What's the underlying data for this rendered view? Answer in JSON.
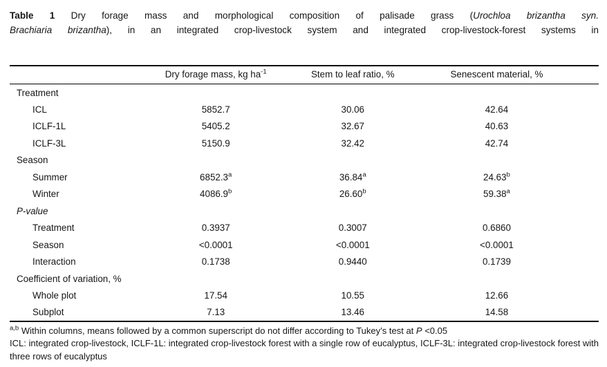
{
  "caption": {
    "line1": {
      "bold": "Table 1",
      "text": " Dry forage mass and morphological composition of palisade grass (",
      "italic": "Urochloa brizantha syn."
    },
    "line2": {
      "italic": "Brachiaria brizantha",
      "text": "), in an integrated crop-livestock system and integrated crop-livestock-forest systems in"
    }
  },
  "table": {
    "columns": [
      {
        "text": ""
      },
      {
        "text": "Dry forage mass, kg ha",
        "sup": "-1"
      },
      {
        "text": "Stem to leaf ratio, %"
      },
      {
        "text": "Senescent material, %"
      }
    ],
    "rows": [
      {
        "type": "section",
        "label": "Treatment",
        "italic": false,
        "values": []
      },
      {
        "type": "data",
        "label": "ICL",
        "values": [
          "5852.7",
          "30.06",
          "42.64"
        ]
      },
      {
        "type": "data",
        "label": "ICLF-1L",
        "values": [
          "5405.2",
          "32.67",
          "40.63"
        ]
      },
      {
        "type": "data",
        "label": "ICLF-3L",
        "values": [
          "5150.9",
          "32.42",
          "42.74"
        ]
      },
      {
        "type": "section",
        "label": "Season",
        "italic": false,
        "values": []
      },
      {
        "type": "data",
        "label": "Summer",
        "values": [
          "6852.3^a",
          "36.84^a",
          "24.63^b"
        ]
      },
      {
        "type": "data",
        "label": "Winter",
        "values": [
          "4086.9^b",
          "26.60^b",
          "59.38^a"
        ]
      },
      {
        "type": "section",
        "label": "P-value",
        "italic": true,
        "values": []
      },
      {
        "type": "data",
        "label": "Treatment",
        "values": [
          "0.3937",
          "0.3007",
          "0.6860"
        ]
      },
      {
        "type": "data",
        "label": "Season",
        "values": [
          "<0.0001",
          "<0.0001",
          "<0.0001"
        ]
      },
      {
        "type": "data",
        "label": "Interaction",
        "values": [
          "0.1738",
          "0.9440",
          "0.1739"
        ]
      },
      {
        "type": "section",
        "label": "Coefficient of variation, %",
        "italic": false,
        "values": []
      },
      {
        "type": "data",
        "label": "Whole plot",
        "values": [
          "17.54",
          "10.55",
          "12.66"
        ]
      },
      {
        "type": "data",
        "label": "Subplot",
        "values": [
          "7.13",
          "13.46",
          "14.58"
        ]
      }
    ]
  },
  "footnotes": {
    "tukey": {
      "sup": "a,b",
      "text": " Within columns, means followed by a common superscript do not differ according to Tukey’s test at ",
      "italic": "P",
      "tail": " <0.05"
    },
    "abbreviations": "ICL: integrated crop-livestock, ICLF-1L: integrated crop-livestock forest with a single row of eucalyptus, ICLF-3L: integrated crop-livestock forest with three rows of eucalyptus"
  }
}
